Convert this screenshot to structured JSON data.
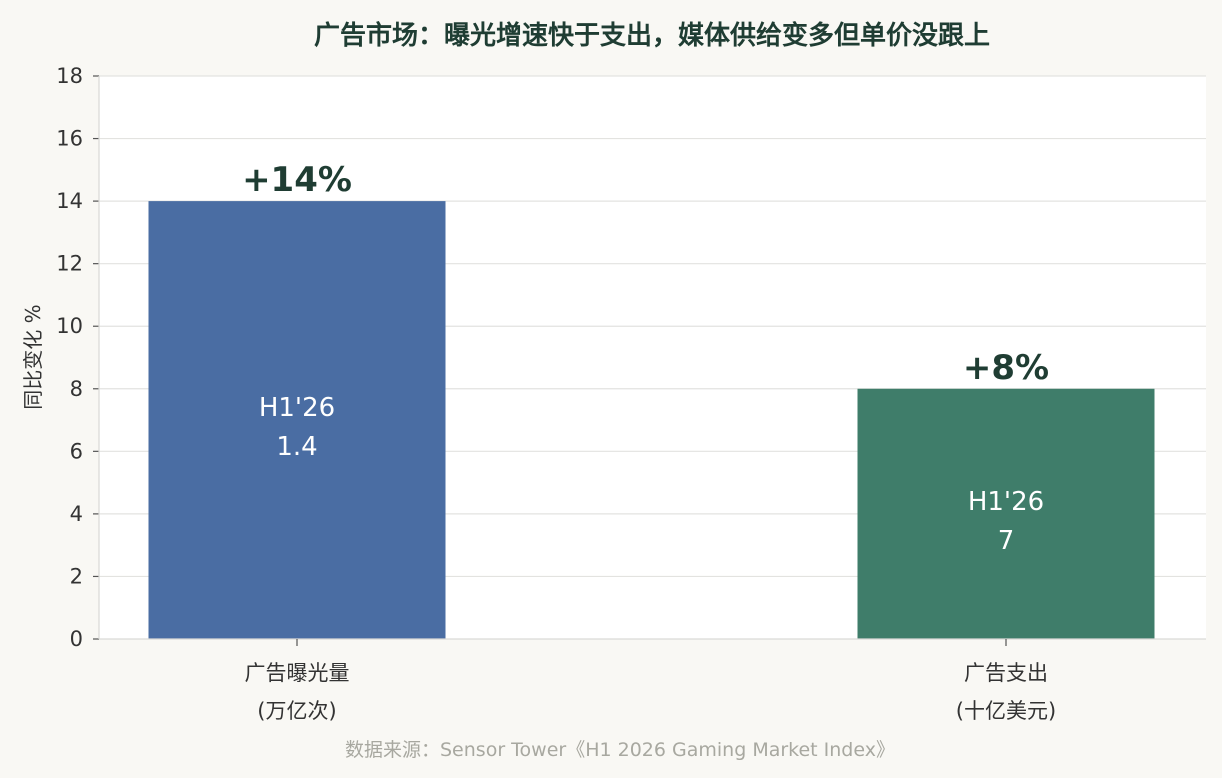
{
  "chart_data": {
    "type": "bar",
    "title": "广告市场：曝光增速快于支出，媒体供给变多但单价没跟上",
    "ylabel": "同比变化 %",
    "xlabel": "",
    "ylim": [
      0,
      18
    ],
    "yticks": [
      0,
      2,
      4,
      6,
      8,
      10,
      12,
      14,
      16,
      18
    ],
    "grid": true,
    "categories": [
      {
        "line1": "广告曝光量",
        "line2": "(万亿次)"
      },
      {
        "line1": "广告支出",
        "line2": "(十亿美元)"
      }
    ],
    "values": [
      14,
      8
    ],
    "value_labels": [
      "+14%",
      "+8%"
    ],
    "inner_labels": [
      {
        "period": "H1'26",
        "value": "1.4"
      },
      {
        "period": "H1'26",
        "value": "7"
      }
    ],
    "colors": [
      "#4a6da3",
      "#3f7d6a"
    ],
    "source": "数据来源：Sensor Tower《H1 2026 Gaming Market Index》"
  }
}
